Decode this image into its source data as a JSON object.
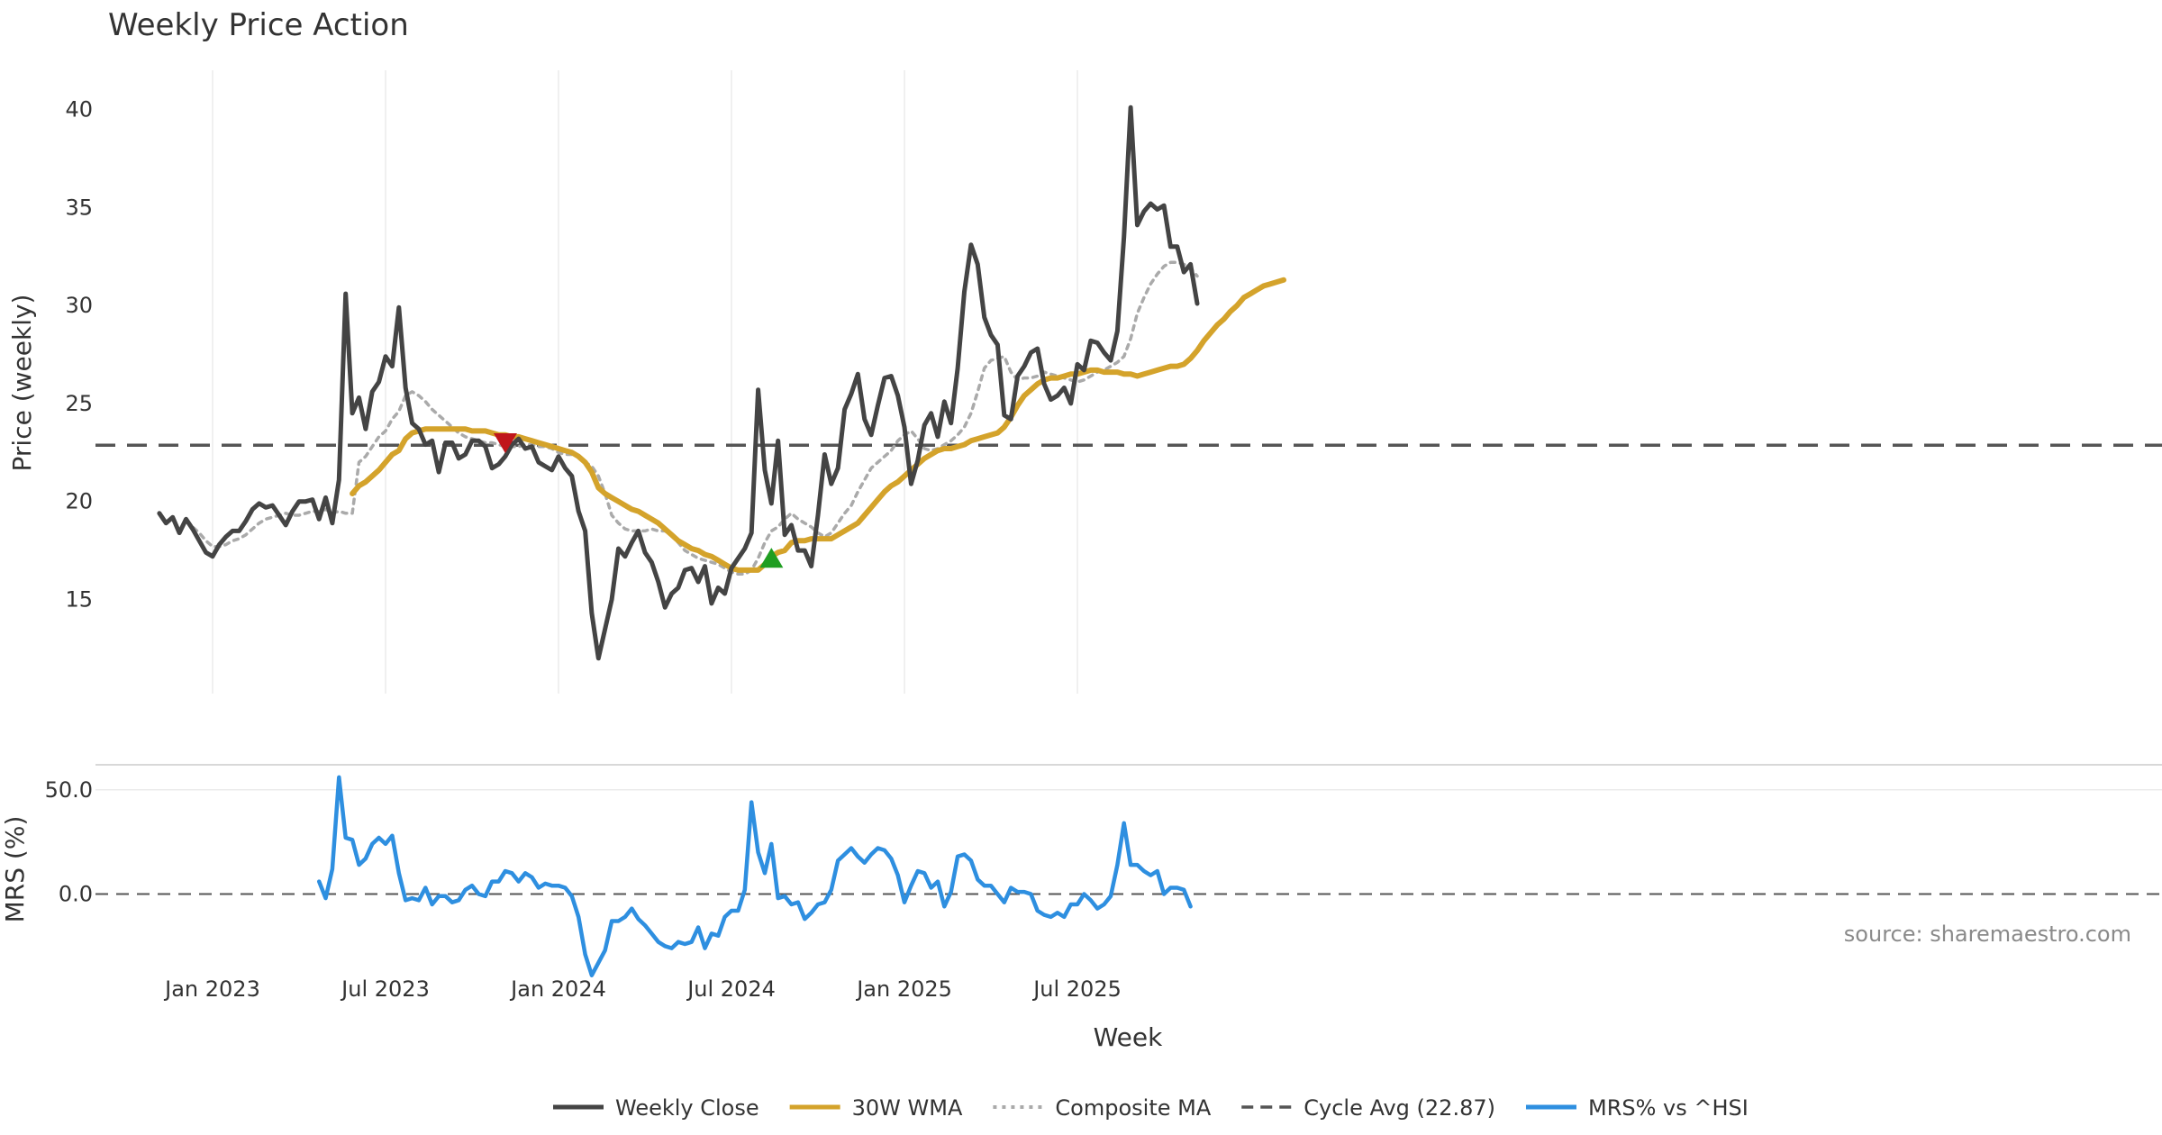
{
  "chart_data": [
    {
      "type": "line",
      "title": "Weekly Price Action",
      "ylabel": "Price (weekly)",
      "ylim": [
        10.2,
        42.0
      ],
      "yticks": [
        15,
        20,
        25,
        30,
        35,
        40
      ],
      "x_start_week": -8,
      "x_end_week": 155,
      "cycle_avg": 22.87,
      "series": [
        {
          "name": "Weekly Close",
          "color": "#444444",
          "start_week": -8,
          "values": [
            19.4,
            18.9,
            19.2,
            18.4,
            19.1,
            18.6,
            18.0,
            17.4,
            17.2,
            17.8,
            18.2,
            18.5,
            18.5,
            19.0,
            19.6,
            19.9,
            19.7,
            19.8,
            19.3,
            18.8,
            19.5,
            20.0,
            20.0,
            20.1,
            19.1,
            20.2,
            18.9,
            21.1,
            30.6,
            24.5,
            25.3,
            23.7,
            25.6,
            26.1,
            27.4,
            26.9,
            29.9,
            25.8,
            24.0,
            23.7,
            22.9,
            23.1,
            21.5,
            23.0,
            23.0,
            22.2,
            22.4,
            23.1,
            23.1,
            22.8,
            21.7,
            21.9,
            22.3,
            22.9,
            23.2,
            22.7,
            22.8,
            22.0,
            21.8,
            21.6,
            22.3,
            21.7,
            21.3,
            19.5,
            18.5,
            14.3,
            12.0,
            13.5,
            15.0,
            17.6,
            17.2,
            17.9,
            18.5,
            17.4,
            16.9,
            15.9,
            14.6,
            15.3,
            15.6,
            16.5,
            16.6,
            15.9,
            16.7,
            14.8,
            15.6,
            15.3,
            16.6,
            17.1,
            17.6,
            18.4,
            25.7,
            21.6,
            19.9,
            23.1,
            18.3,
            18.8,
            17.5,
            17.5,
            16.7,
            19.3,
            22.4,
            20.9,
            21.7,
            24.7,
            25.5,
            26.5,
            24.2,
            23.4,
            24.9,
            26.3,
            26.4,
            25.4,
            23.8,
            20.9,
            22.1,
            23.9,
            24.5,
            23.3,
            25.1,
            24.0,
            26.8,
            30.7,
            33.1,
            32.1,
            29.4,
            28.5,
            28.0,
            24.4,
            24.2,
            26.4,
            26.9,
            27.6,
            27.8,
            26.0,
            25.2,
            25.4,
            25.8,
            25.0,
            27.0,
            26.7,
            28.2,
            28.1,
            27.6,
            27.2,
            28.7,
            33.5,
            40.1,
            34.1,
            34.8,
            35.2,
            34.9,
            35.1,
            33.0,
            33.0,
            31.7,
            32.1,
            30.1
          ]
        },
        {
          "name": "30W WMA",
          "color": "#d4a32b",
          "start_week": 21,
          "values": [
            20.4,
            20.8,
            21.0,
            21.3,
            21.6,
            22.0,
            22.4,
            22.6,
            23.2,
            23.5,
            23.6,
            23.7,
            23.7,
            23.7,
            23.7,
            23.7,
            23.7,
            23.7,
            23.6,
            23.6,
            23.6,
            23.5,
            23.4,
            23.4,
            23.3,
            23.3,
            23.2,
            23.1,
            23.0,
            22.9,
            22.8,
            22.7,
            22.6,
            22.5,
            22.3,
            22.0,
            21.5,
            20.7,
            20.4,
            20.2,
            20.0,
            19.8,
            19.6,
            19.5,
            19.3,
            19.1,
            18.9,
            18.6,
            18.3,
            18.0,
            17.8,
            17.6,
            17.5,
            17.3,
            17.2,
            17.0,
            16.8,
            16.6,
            16.5,
            16.5,
            16.5,
            16.5,
            16.8,
            17.2,
            17.4,
            17.5,
            17.9,
            18.0,
            18.0,
            18.1,
            18.1,
            18.1,
            18.1,
            18.3,
            18.5,
            18.7,
            18.9,
            19.3,
            19.7,
            20.1,
            20.5,
            20.8,
            21.0,
            21.3,
            21.6,
            21.9,
            22.2,
            22.4,
            22.6,
            22.7,
            22.7,
            22.8,
            22.9,
            23.1,
            23.2,
            23.3,
            23.4,
            23.5,
            23.8,
            24.3,
            24.9,
            25.4,
            25.7,
            26.0,
            26.2,
            26.3,
            26.3,
            26.4,
            26.5,
            26.5,
            26.6,
            26.7,
            26.7,
            26.6,
            26.6,
            26.6,
            26.5,
            26.5,
            26.4,
            26.5,
            26.6,
            26.7,
            26.8,
            26.9,
            26.9,
            27.0,
            27.3,
            27.7,
            28.2,
            28.6,
            29.0,
            29.3,
            29.7,
            30.0,
            30.4,
            30.6,
            30.8,
            31.0,
            31.1,
            31.2,
            31.3
          ]
        },
        {
          "name": "Composite MA",
          "color": "#aaaaaa",
          "start_week": -4,
          "values": [
            19.0,
            18.7,
            18.4,
            18.0,
            17.7,
            17.7,
            17.8,
            18.0,
            18.1,
            18.3,
            18.6,
            18.9,
            19.1,
            19.2,
            19.3,
            19.4,
            19.3,
            19.3,
            19.4,
            19.5,
            19.5,
            19.6,
            19.4,
            19.5,
            19.4,
            19.4,
            22.0,
            22.3,
            22.8,
            23.3,
            23.6,
            24.2,
            24.6,
            25.4,
            25.6,
            25.4,
            25.1,
            24.7,
            24.4,
            24.1,
            23.8,
            23.5,
            23.3,
            23.2,
            23.1,
            23.0,
            23.0,
            22.9,
            22.8,
            22.8,
            22.8,
            22.9,
            22.9,
            22.8,
            22.8,
            22.7,
            22.5,
            22.4,
            22.4,
            22.3,
            22.0,
            21.8,
            21.3,
            20.4,
            19.3,
            18.9,
            18.6,
            18.5,
            18.5,
            18.5,
            18.6,
            18.5,
            18.5,
            18.3,
            17.9,
            17.5,
            17.3,
            17.1,
            17.0,
            16.9,
            16.8,
            16.6,
            16.4,
            16.3,
            16.3,
            16.5,
            17.1,
            17.9,
            18.5,
            18.7,
            19.1,
            19.4,
            19.1,
            18.9,
            18.7,
            18.4,
            18.2,
            18.4,
            18.9,
            19.4,
            19.8,
            20.5,
            21.1,
            21.7,
            22.0,
            22.3,
            22.6,
            23.1,
            23.4,
            23.6,
            23.2,
            22.7,
            22.6,
            22.7,
            22.9,
            23.1,
            23.4,
            23.8,
            24.5,
            25.6,
            26.8,
            27.2,
            27.3,
            27.4,
            26.6,
            26.2,
            26.3,
            26.3,
            26.4,
            26.6,
            26.5,
            26.4,
            26.3,
            26.2,
            26.1,
            26.2,
            26.4,
            26.6,
            26.7,
            26.9,
            27.1,
            27.4,
            28.3,
            29.6,
            30.4,
            31.1,
            31.6,
            32.0,
            32.2,
            32.2,
            32.1,
            31.9,
            31.5
          ]
        }
      ],
      "markers": [
        {
          "type": "sell",
          "symbol": "triangle-down",
          "week": 44,
          "value": 23.0,
          "color": "#c0161b"
        },
        {
          "type": "buy",
          "symbol": "triangle-up",
          "week": 84,
          "value": 17.1,
          "color": "#1f9e21"
        }
      ]
    },
    {
      "type": "line",
      "ylabel": "MRS (%)",
      "xlabel": "Week",
      "ylim": [
        -40,
        62
      ],
      "yticks": [
        0,
        50
      ],
      "ytick_labels": [
        "0.0",
        "50.0"
      ],
      "zero_line": 0,
      "series": [
        {
          "name": "MRS% vs ^HSI",
          "color": "#2e8fe0",
          "start_week": 16,
          "values": [
            6,
            -2,
            12,
            56,
            27,
            26,
            14,
            17,
            24,
            27,
            24,
            28,
            10,
            -3,
            -2,
            -3,
            3,
            -5,
            -1,
            -1,
            -4,
            -3,
            2,
            4,
            0,
            -1,
            6,
            6,
            11,
            10,
            6,
            10,
            8,
            3,
            5,
            4,
            4,
            3,
            -1,
            -11,
            -29,
            -39,
            -33,
            -27,
            -13,
            -13,
            -11,
            -7,
            -12,
            -15,
            -19,
            -23,
            -25,
            -26,
            -23,
            -24,
            -23,
            -16,
            -26,
            -19,
            -20,
            -11,
            -8,
            -8,
            2,
            44,
            20,
            10,
            24,
            -2,
            -1,
            -5,
            -4,
            -12,
            -9,
            -5,
            -4,
            2,
            16,
            19,
            22,
            18,
            15,
            19,
            22,
            21,
            17,
            9,
            -4,
            4,
            11,
            10,
            3,
            6,
            -6,
            1,
            18,
            19,
            16,
            7,
            4,
            4,
            0,
            -4,
            3,
            1,
            1,
            0,
            -8,
            -10,
            -11,
            -9,
            -11,
            -5,
            -5,
            0,
            -3,
            -7,
            -5,
            -1,
            14,
            34,
            14,
            14,
            11,
            9,
            11,
            0,
            3,
            3,
            2,
            -6
          ]
        }
      ],
      "xticks": [
        {
          "week": 0,
          "label": "Jan 2023"
        },
        {
          "week": 26,
          "label": "Jul 2023"
        },
        {
          "week": 52,
          "label": "Jan 2024"
        },
        {
          "week": 78,
          "label": "Jul 2024"
        },
        {
          "week": 104,
          "label": "Jan 2025"
        },
        {
          "week": 130,
          "label": "Jul 2025"
        }
      ]
    }
  ],
  "legend": {
    "placement": "bottom-center",
    "items": [
      {
        "label": "Weekly Close",
        "color": "#444444",
        "style": "solid"
      },
      {
        "label": "30W WMA",
        "color": "#d4a32b",
        "style": "solid"
      },
      {
        "label": "Composite MA",
        "color": "#aaaaaa",
        "style": "dotted"
      },
      {
        "label": "Cycle Avg (22.87)",
        "color": "#555555",
        "style": "dashed"
      },
      {
        "label": "MRS% vs ^HSI",
        "color": "#2e8fe0",
        "style": "solid"
      }
    ]
  },
  "source_text": "source: sharemaestro.com",
  "colors": {
    "grid": "#ebebeb",
    "cycle_line": "#555555",
    "zero_line": "#555555",
    "axis": "#cccccc"
  }
}
